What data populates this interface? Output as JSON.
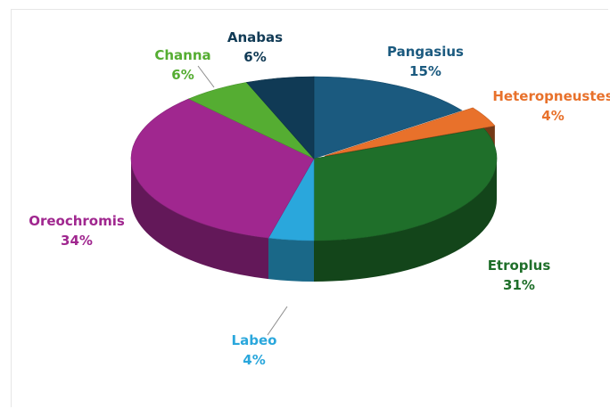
{
  "chart_data": {
    "type": "pie",
    "title": "",
    "legend": "none",
    "slices": [
      {
        "label": "Pangasius",
        "value": 15,
        "display": "15%",
        "color": "#1b5a7f"
      },
      {
        "label": "Heteropneustes",
        "value": 4,
        "display": "4%",
        "color": "#e8712b"
      },
      {
        "label": "Etroplus",
        "value": 31,
        "display": "31%",
        "color": "#1f6f2a"
      },
      {
        "label": "Labeo",
        "value": 4,
        "display": "4%",
        "color": "#2aa7dc"
      },
      {
        "label": "Oreochromis",
        "value": 34,
        "display": "34%",
        "color": "#a0278f"
      },
      {
        "label": "Channa",
        "value": 6,
        "display": "6%",
        "color": "#55ad32"
      },
      {
        "label": "Anabas",
        "value": 6,
        "display": "6%",
        "color": "#103a55"
      }
    ],
    "label_colors": {
      "Pangasius": "#1b5a7f",
      "Heteropneustes": "#e8712b",
      "Etroplus": "#1f6f2a",
      "Labeo": "#2aa7dc",
      "Oreochromis": "#a0278f",
      "Channa": "#55ad32",
      "Anabas": "#103a55"
    }
  }
}
